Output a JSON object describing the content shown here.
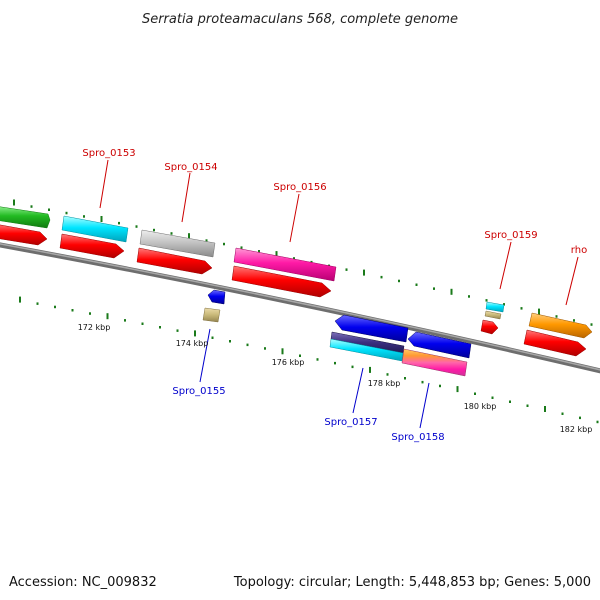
{
  "title": "Serratia proteamaculans 568, complete genome",
  "footer": {
    "accession": "Accession: NC_009832",
    "topology": "Topology: circular; Length: 5,448,853 bp; Genes: 5,000"
  },
  "scale_labels": [
    "172 kbp",
    "174 kbp",
    "176 kbp",
    "178 kbp",
    "180 kbp",
    "182 kbp"
  ],
  "gene_labels": {
    "spro_0153": "Spro_0153",
    "spro_0154": "Spro_0154",
    "spro_0156": "Spro_0156",
    "spro_0159": "Spro_0159",
    "rho": "rho",
    "spro_0155": "Spro_0155",
    "spro_0157": "Spro_0157",
    "spro_0158": "Spro_0158"
  },
  "colors": {
    "forward_label": "#cc0000",
    "reverse_label": "#0000cc",
    "cds": "#ff0000",
    "backbone": "#808080",
    "tick": "#1a7a1a"
  }
}
